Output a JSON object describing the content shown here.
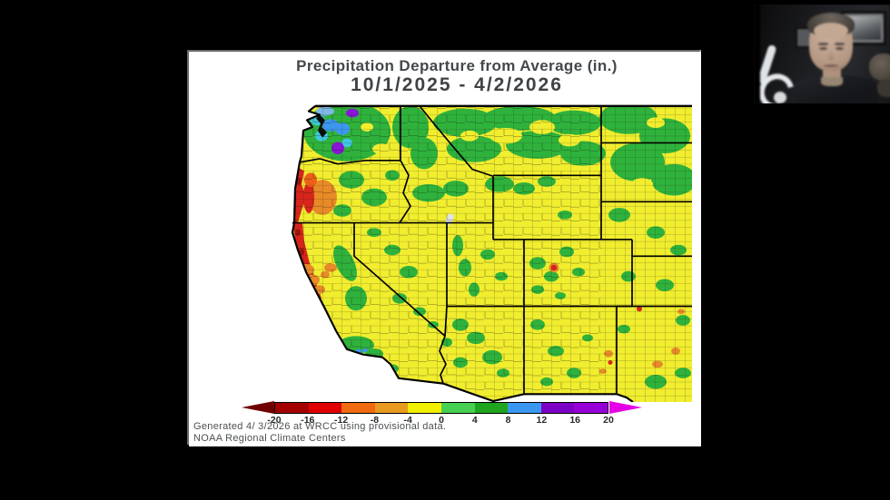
{
  "slide": {
    "title": "Precipitation Departure from Average (in.)",
    "date_range": "10/1/2025 - 4/2/2026",
    "generated_note": "Generated 4/ 3/2026 at WRCC using provisional data.",
    "source": "NOAA Regional Climate Centers"
  },
  "legend": {
    "tick_labels": [
      "-20",
      "-16",
      "-12",
      "-8",
      "-4",
      "0",
      "4",
      "8",
      "12",
      "16",
      "20"
    ],
    "segment_colors": [
      "#A50000",
      "#E00000",
      "#F06A10",
      "#E89A20",
      "#F0F000",
      "#47D152",
      "#1FA41F",
      "#3A97F0",
      "#7C00C4",
      "#9800D8"
    ],
    "arrow_left_color": "#700000",
    "arrow_right_color": "#E500E5",
    "units": "in."
  },
  "map_colors": {
    "base_yellow": "#F1ED2F",
    "green": "#2FB23C",
    "red": "#D8251C",
    "dark_red": "#9E120E",
    "orange": "#E88A28",
    "orange_red": "#EE6018",
    "blue": "#3D96EF",
    "cyan": "#3FC8E0",
    "purple": "#8A14D8",
    "light_blue": "#7FB8E8"
  }
}
